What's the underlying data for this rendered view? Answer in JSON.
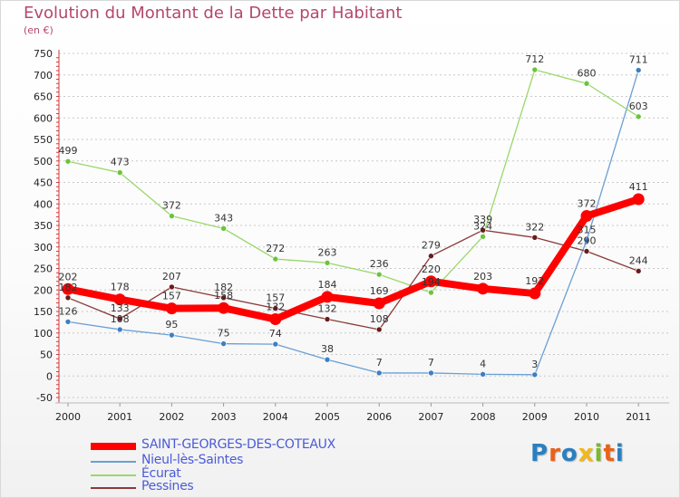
{
  "title": "Evolution du Montant de la Dette par Habitant",
  "subtitle": "(en €)",
  "logo": {
    "text": "Proxiti",
    "letter_colors": [
      "#2a7fc0",
      "#e8621a",
      "#2a7fc0",
      "#f0b81b",
      "#7ab82c",
      "#e8621a",
      "#2a7fc0"
    ]
  },
  "chart_data": {
    "type": "line",
    "title": "Evolution du Montant de la Dette par Habitant",
    "subtitle": "(en €)",
    "x": [
      "2000",
      "2001",
      "2002",
      "2003",
      "2004",
      "2005",
      "2006",
      "2007",
      "2008",
      "2009",
      "2010",
      "2011"
    ],
    "ylim": [
      -50,
      750
    ],
    "yticks": [
      -50,
      0,
      50,
      100,
      150,
      200,
      250,
      300,
      350,
      400,
      450,
      500,
      550,
      600,
      650,
      700,
      750
    ],
    "grid": "horizontal dashed",
    "legend_position": "bottom-left",
    "series": [
      {
        "name": "SAINT-GEORGES-DES-COTEAUX",
        "color": "#ff0000",
        "marker_color": "#ff0000",
        "width": 8,
        "marker": 6.5,
        "values": [
          202,
          178,
          157,
          158,
          132,
          184,
          169,
          220,
          203,
          192,
          372,
          411
        ],
        "labels": [
          "202",
          "178",
          "157",
          "158",
          "132",
          "184",
          "169",
          "220",
          "203",
          "192",
          "372",
          "411"
        ]
      },
      {
        "name": "Nieul-lès-Saintes",
        "color": "#6a9fd4",
        "marker_color": "#3d7fc2",
        "width": 1.3,
        "marker": 3,
        "values": [
          126,
          108,
          95,
          75,
          74,
          38,
          7,
          7,
          4,
          3,
          315,
          711
        ],
        "labels": [
          "126",
          "108",
          "95",
          "75",
          "74",
          "38",
          "7",
          "7",
          "4",
          "3",
          "315",
          "711"
        ]
      },
      {
        "name": "Écurat",
        "color": "#9ad86a",
        "marker_color": "#6cc33c",
        "width": 1.3,
        "marker": 3,
        "values": [
          499,
          473,
          372,
          343,
          272,
          263,
          236,
          194,
          324,
          712,
          680,
          603
        ],
        "labels": [
          "499",
          "473",
          "372",
          "343",
          "272",
          "263",
          "236",
          "194",
          "324",
          "712",
          "680",
          "603"
        ]
      },
      {
        "name": "Pessines",
        "color": "#8a3a3a",
        "marker_color": "#6a1a1a",
        "width": 1.3,
        "marker": 3,
        "values": [
          182,
          133,
          207,
          182,
          157,
          132,
          108,
          279,
          339,
          322,
          290,
          244
        ],
        "labels": [
          "182",
          "133",
          "207",
          "182",
          "157",
          "132",
          "108",
          "279",
          "339",
          "322",
          "290",
          "244"
        ]
      }
    ]
  }
}
